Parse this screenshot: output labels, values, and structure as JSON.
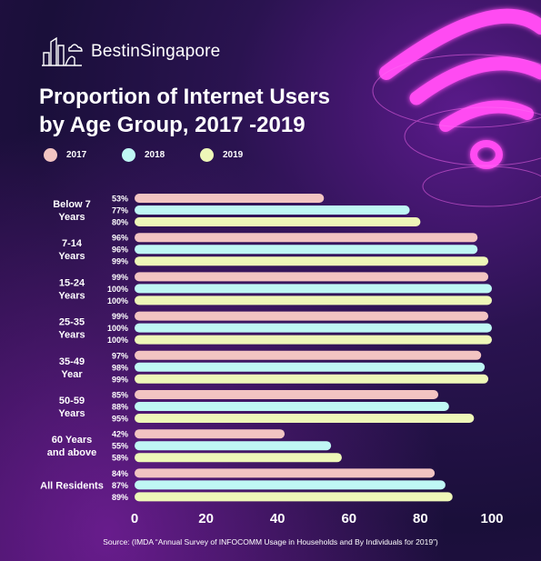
{
  "brand": {
    "name": "BestinSingapore",
    "logo_icon": "city-skyline-icon"
  },
  "title_line1": "Proportion of Internet Users",
  "title_line2": "by Age Group, 2017 -2019",
  "source": "Source: (IMDA “Annual Survey of INFOCOMM Usage in Households and By Individuals for 2019”)",
  "decoration": {
    "icon": "wifi-icon",
    "color": "#ff3df0"
  },
  "chart_data": {
    "type": "bar",
    "orientation": "horizontal",
    "categories": [
      [
        "Below 7",
        "Years"
      ],
      [
        "7-14",
        "Years"
      ],
      [
        "15-24",
        "Years"
      ],
      [
        "25-35",
        "Years"
      ],
      [
        "35-49",
        "Year"
      ],
      [
        "50-59",
        "Years"
      ],
      [
        "60 Years",
        "and above"
      ],
      [
        "All Residents"
      ]
    ],
    "series": [
      {
        "name": "2017",
        "color": "#f2c4c2",
        "values": [
          53,
          96,
          99,
          99,
          97,
          85,
          42,
          84
        ]
      },
      {
        "name": "2018",
        "color": "#bff7f4",
        "values": [
          77,
          96,
          100,
          100,
          98,
          88,
          55,
          87
        ]
      },
      {
        "name": "2019",
        "color": "#eef7b8",
        "values": [
          80,
          99,
          100,
          100,
          99,
          95,
          58,
          89
        ]
      }
    ],
    "value_suffix": "%",
    "xlim": [
      0,
      100
    ],
    "xticks": [
      0,
      20,
      40,
      60,
      80,
      100
    ],
    "grid": false,
    "legend_position": "top-left"
  }
}
